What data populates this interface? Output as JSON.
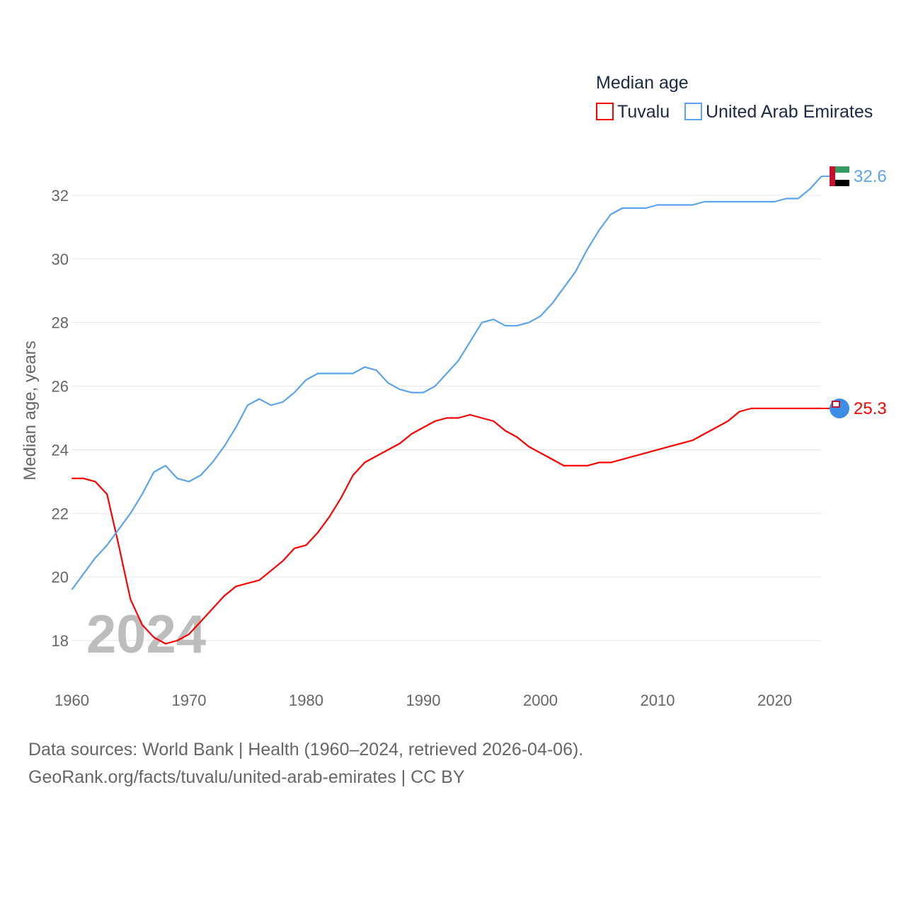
{
  "chart_data": {
    "type": "line",
    "title": "Median age",
    "xlabel": "",
    "ylabel": "Median age, years",
    "xlim": [
      1960,
      2024
    ],
    "ylim": [
      17,
      33
    ],
    "x_ticks": [
      "1960",
      "1970",
      "1980",
      "1990",
      "2000",
      "2010",
      "2020"
    ],
    "y_ticks": [
      "18",
      "20",
      "22",
      "24",
      "26",
      "28",
      "30",
      "32"
    ],
    "grid": true,
    "legend_position": "top-right",
    "year_watermark": "2024",
    "x": [
      1960,
      1961,
      1962,
      1963,
      1964,
      1965,
      1966,
      1967,
      1968,
      1969,
      1970,
      1971,
      1972,
      1973,
      1974,
      1975,
      1976,
      1977,
      1978,
      1979,
      1980,
      1981,
      1982,
      1983,
      1984,
      1985,
      1986,
      1987,
      1988,
      1989,
      1990,
      1991,
      1992,
      1993,
      1994,
      1995,
      1996,
      1997,
      1998,
      1999,
      2000,
      2001,
      2002,
      2003,
      2004,
      2005,
      2006,
      2007,
      2008,
      2009,
      2010,
      2011,
      2012,
      2013,
      2014,
      2015,
      2016,
      2017,
      2018,
      2019,
      2020,
      2021,
      2022,
      2023,
      2024
    ],
    "series": [
      {
        "name": "Tuvalu",
        "color": "#ff0000",
        "end_label": "25.3",
        "values": [
          23.1,
          23.1,
          23.0,
          22.6,
          21.0,
          19.3,
          18.5,
          18.1,
          17.9,
          18.0,
          18.2,
          18.6,
          19.0,
          19.4,
          19.7,
          19.8,
          19.9,
          20.2,
          20.5,
          20.9,
          21.0,
          21.4,
          21.9,
          22.5,
          23.2,
          23.6,
          23.8,
          24.0,
          24.2,
          24.5,
          24.7,
          24.9,
          25.0,
          25.0,
          25.1,
          25.0,
          24.9,
          24.6,
          24.4,
          24.1,
          23.9,
          23.7,
          23.5,
          23.5,
          23.5,
          23.6,
          23.6,
          23.7,
          23.8,
          23.9,
          24.0,
          24.1,
          24.2,
          24.3,
          24.5,
          24.7,
          24.9,
          25.2,
          25.3,
          25.3,
          25.3,
          25.3,
          25.3,
          25.3,
          25.3
        ]
      },
      {
        "name": "United Arab Emirates",
        "color": "#5ba4ec",
        "end_label": "32.6",
        "values": [
          19.6,
          20.1,
          20.6,
          21.0,
          21.5,
          22.0,
          22.6,
          23.3,
          23.5,
          23.1,
          23.0,
          23.2,
          23.6,
          24.1,
          24.7,
          25.4,
          25.6,
          25.4,
          25.5,
          25.8,
          26.2,
          26.4,
          26.4,
          26.4,
          26.4,
          26.6,
          26.5,
          26.1,
          25.9,
          25.8,
          25.8,
          26.0,
          26.4,
          26.8,
          27.4,
          28.0,
          28.1,
          27.9,
          27.9,
          28.0,
          28.2,
          28.6,
          29.1,
          29.6,
          30.3,
          30.9,
          31.4,
          31.6,
          31.6,
          31.6,
          31.7,
          31.7,
          31.7,
          31.7,
          31.8,
          31.8,
          31.8,
          31.8,
          31.8,
          31.8,
          31.8,
          31.9,
          31.9,
          32.2,
          32.6
        ]
      }
    ]
  },
  "footer": {
    "line1": "Data sources: World Bank | Health (1960–2024, retrieved 2026-04-06).",
    "line2": "GeoRank.org/facts/tuvalu/united-arab-emirates | CC BY"
  }
}
